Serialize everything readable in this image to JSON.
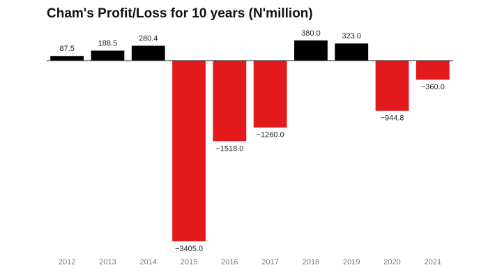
{
  "chart_data": {
    "type": "bar",
    "title": "Cham's Profit/Loss for 10 years (N'million)",
    "categories": [
      "2012",
      "2013",
      "2014",
      "2015",
      "2016",
      "2017",
      "2018",
      "2019",
      "2020",
      "2021"
    ],
    "values": [
      87.5,
      188.5,
      280.4,
      -3405,
      -1518,
      -1260,
      380,
      323,
      -944.8,
      -360
    ],
    "value_labels": [
      "87.5",
      "188.5",
      "280.4",
      "−3405.0",
      "−1518.0",
      "−1260.0",
      "380.0",
      "323.0",
      "−944.8",
      "−360.0"
    ],
    "positive_color": "#000000",
    "negative_color": "#e31a1c"
  }
}
